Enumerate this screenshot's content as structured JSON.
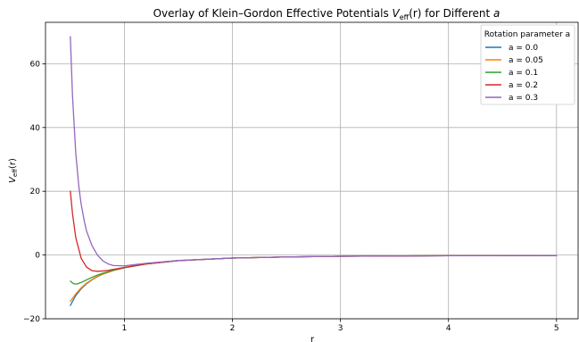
{
  "chart_data": {
    "type": "line",
    "title": {
      "prefix": "Overlay of Klein–Gordon Effective Potentials ",
      "v": "V",
      "v_sub": "eff",
      "middle": "(r) for Different ",
      "a": "a"
    },
    "xlabel": "r",
    "ylabel": {
      "v": "V",
      "sub": "eff",
      "rest": "(r)"
    },
    "xlim": [
      0.27,
      5.2
    ],
    "ylim": [
      -20,
      73
    ],
    "xticks": [
      1,
      2,
      3,
      4,
      5
    ],
    "yticks": [
      -20,
      0,
      20,
      40,
      60
    ],
    "grid": true,
    "legend": {
      "title": "Rotation parameter a",
      "position": "top-right"
    },
    "series": [
      {
        "name": "a = 0.0",
        "color": "#1f77b4",
        "x": [
          0.5,
          0.55,
          0.6,
          0.65,
          0.7,
          0.75,
          0.8,
          0.9,
          1.0,
          1.2,
          1.5,
          2.0,
          2.5,
          3.0,
          4.0,
          5.0
        ],
        "y": [
          -15.8,
          -12.7,
          -10.6,
          -9.0,
          -7.8,
          -6.8,
          -6.0,
          -4.85,
          -4.0,
          -2.8,
          -1.75,
          -0.95,
          -0.6,
          -0.4,
          -0.22,
          -0.14
        ]
      },
      {
        "name": "a = 0.05",
        "color": "#ff7f0e",
        "x": [
          0.5,
          0.55,
          0.6,
          0.65,
          0.7,
          0.75,
          0.8,
          0.9,
          1.0,
          1.2,
          1.5,
          2.0,
          2.5,
          3.0,
          4.0,
          5.0
        ],
        "y": [
          -14.5,
          -12.2,
          -10.3,
          -8.8,
          -7.7,
          -6.75,
          -6.0,
          -4.85,
          -4.0,
          -2.8,
          -1.75,
          -0.95,
          -0.6,
          -0.4,
          -0.22,
          -0.14
        ]
      },
      {
        "name": "a = 0.1",
        "color": "#2ca02c",
        "x": [
          0.5,
          0.53,
          0.56,
          0.6,
          0.65,
          0.7,
          0.75,
          0.8,
          0.9,
          1.0,
          1.2,
          1.5,
          2.0,
          2.5,
          3.0,
          4.0,
          5.0
        ],
        "y": [
          -8.2,
          -9.0,
          -9.1,
          -8.6,
          -7.8,
          -7.0,
          -6.3,
          -5.7,
          -4.7,
          -3.95,
          -2.8,
          -1.75,
          -0.95,
          -0.6,
          -0.4,
          -0.22,
          -0.14
        ]
      },
      {
        "name": "a = 0.2",
        "color": "#d62728",
        "x": [
          0.5,
          0.52,
          0.55,
          0.6,
          0.65,
          0.7,
          0.75,
          0.8,
          0.85,
          0.9,
          1.0,
          1.2,
          1.5,
          2.0,
          2.5,
          3.0,
          4.0,
          5.0
        ],
        "y": [
          20.0,
          13.0,
          5.5,
          -1.0,
          -3.8,
          -4.9,
          -5.1,
          -5.0,
          -4.8,
          -4.5,
          -3.9,
          -2.8,
          -1.75,
          -0.95,
          -0.6,
          -0.4,
          -0.22,
          -0.14
        ]
      },
      {
        "name": "a = 0.3",
        "color": "#9467bd",
        "x": [
          0.5,
          0.52,
          0.55,
          0.58,
          0.6,
          0.63,
          0.65,
          0.7,
          0.75,
          0.8,
          0.85,
          0.9,
          1.0,
          1.1,
          1.2,
          1.5,
          2.0,
          2.5,
          3.0,
          4.0,
          5.0
        ],
        "y": [
          68.5,
          50.0,
          32.0,
          21.0,
          16.0,
          10.5,
          7.5,
          3.0,
          0.0,
          -1.8,
          -2.8,
          -3.3,
          -3.4,
          -3.0,
          -2.6,
          -1.7,
          -0.95,
          -0.6,
          -0.4,
          -0.22,
          -0.14
        ]
      }
    ]
  }
}
